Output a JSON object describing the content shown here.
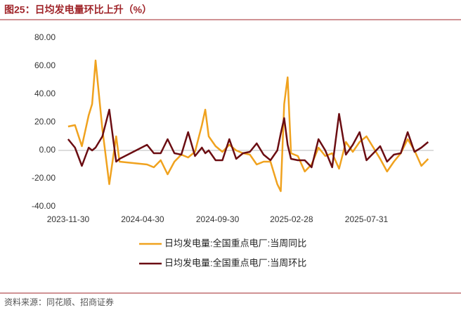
{
  "chart_data": {
    "type": "line",
    "title": "图25：日均发电量环比上升（%）",
    "source": "资料来源：同花顺、招商证券",
    "x": [
      "2023-11-30",
      "2023-12-14",
      "2023-12-28",
      "2024-01-11",
      "2024-01-18",
      "2024-01-25",
      "2024-02-08",
      "2024-02-22",
      "2024-03-07",
      "2024-03-14",
      "2024-05-09",
      "2024-05-23",
      "2024-06-06",
      "2024-06-20",
      "2024-07-04",
      "2024-07-18",
      "2024-08-01",
      "2024-08-15",
      "2024-08-29",
      "2024-09-05",
      "2024-09-12",
      "2024-09-26",
      "2024-10-10",
      "2024-10-24",
      "2024-11-07",
      "2024-11-21",
      "2024-12-05",
      "2024-12-19",
      "2025-01-02",
      "2025-01-16",
      "2025-01-30",
      "2025-02-06",
      "2025-02-13",
      "2025-02-20",
      "2025-02-27",
      "2025-03-13",
      "2025-03-27",
      "2025-04-10",
      "2025-04-24",
      "2025-05-08",
      "2025-05-22",
      "2025-06-05",
      "2025-06-19",
      "2025-07-03",
      "2025-07-17",
      "2025-07-31",
      "2025-08-14",
      "2025-08-28",
      "2025-09-11",
      "2025-09-25",
      "2025-10-09",
      "2025-10-23",
      "2025-11-06",
      "2025-11-20",
      "2025-12-04"
    ],
    "series": [
      {
        "name": "日均发电量:全国重点电厂:当周同比",
        "color": "#f0a21e",
        "values": [
          17,
          18,
          3,
          25,
          33,
          64,
          15,
          -24,
          10,
          -8,
          -10,
          -12,
          -7,
          -17,
          -8,
          -3,
          -5,
          -1,
          18,
          29,
          10,
          3,
          -1,
          4,
          0,
          -2,
          -3,
          -10,
          -8,
          -8,
          -24,
          -29,
          33,
          52,
          -2,
          -4,
          -15,
          -10,
          2,
          -4,
          -2,
          -13,
          6,
          -1,
          6,
          10,
          2,
          -6,
          -15,
          -8,
          -2,
          8,
          0,
          -11,
          -6
        ]
      },
      {
        "name": "日均发电量:全国重点电厂:当周环比",
        "color": "#6b0d12",
        "values": [
          8,
          2,
          -11,
          2,
          0,
          2,
          10,
          29,
          -8,
          -6,
          4,
          -2,
          -2,
          8,
          -2,
          -3,
          13,
          -4,
          2,
          -2,
          0,
          -7,
          -7,
          8,
          -6,
          -2,
          -1,
          5,
          -3,
          -7,
          0,
          12,
          23,
          4,
          -6,
          -7,
          -7,
          -12,
          8,
          0,
          -12,
          26,
          -3,
          4,
          13,
          -7,
          -2,
          3,
          -8,
          -3,
          -2,
          13,
          -1,
          2,
          6
        ]
      }
    ],
    "xlim": [
      "2023-11-10",
      "2025-12-15"
    ],
    "xticks": [
      "2023-11-30",
      "2024-04-30",
      "2024-09-30",
      "2025-02-28",
      "2025-07-31"
    ],
    "ylim": [
      -40,
      80
    ],
    "yticks": [
      {
        "value": -40,
        "label": "-40.00"
      },
      {
        "value": -20,
        "label": "-20.00"
      },
      {
        "value": 0,
        "label": "0.00"
      },
      {
        "value": 20,
        "label": "20.00"
      },
      {
        "value": 40,
        "label": "40.00"
      },
      {
        "value": 60,
        "label": "60.00"
      },
      {
        "value": 80,
        "label": "80.00"
      }
    ],
    "grid": false
  }
}
